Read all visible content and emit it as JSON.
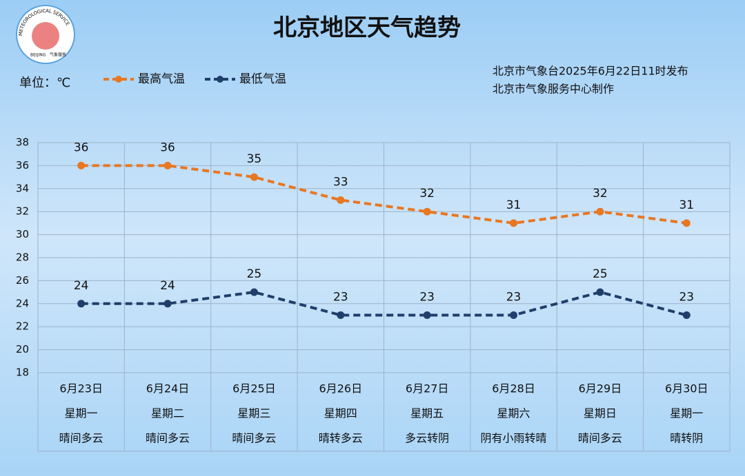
{
  "chart_data": {
    "type": "line",
    "title": "北京地区天气趋势",
    "unit_label": "单位：℃",
    "publisher": [
      "北京市气象台2025年6月22日11时发布",
      "北京市气象服务中心制作"
    ],
    "logo_text": [
      "METEOROLOGICAL SERVICE",
      "BEIJING",
      "气象服务"
    ],
    "categories": [
      "6月23日",
      "6月24日",
      "6月25日",
      "6月26日",
      "6月27日",
      "6月28日",
      "6月29日",
      "6月30日"
    ],
    "weekdays": [
      "星期一",
      "星期二",
      "星期三",
      "星期四",
      "星期五",
      "星期六",
      "星期日",
      "星期一"
    ],
    "weather": [
      "晴间多云",
      "晴间多云",
      "晴间多云",
      "晴转多云",
      "多云转阴",
      "阴有小雨转晴",
      "晴间多云",
      "晴转阴"
    ],
    "series": [
      {
        "name": "最高气温",
        "color": "#e87722",
        "values": [
          36,
          36,
          35,
          33,
          32,
          31,
          32,
          31
        ]
      },
      {
        "name": "最低气温",
        "color": "#1f3e6b",
        "values": [
          24,
          24,
          25,
          23,
          23,
          23,
          25,
          23
        ]
      }
    ],
    "ylim": [
      18,
      38
    ],
    "yticks": [
      18,
      20,
      22,
      24,
      26,
      28,
      30,
      32,
      34,
      36,
      38
    ],
    "grid": true
  }
}
